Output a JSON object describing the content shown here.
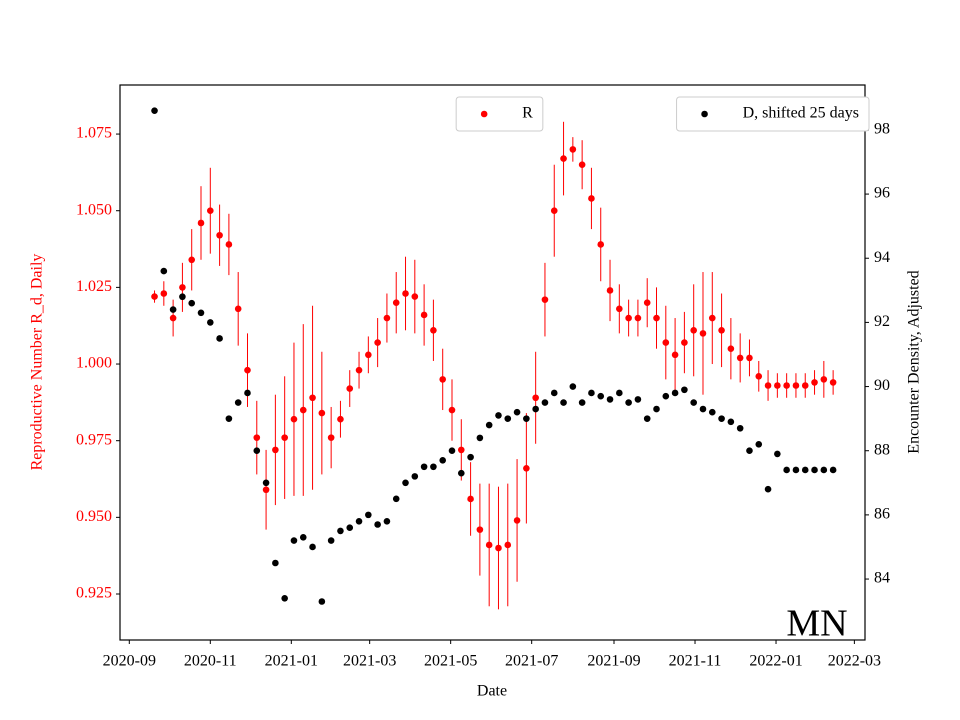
{
  "chart_data": {
    "type": "scatter",
    "xlabel": "Date",
    "ylabel": "Reproductive Number R_d, Daily",
    "y2label": "Encounter Density, Adjusted",
    "annotation": "MN",
    "x": [
      "2020-09-20",
      "2020-09-27",
      "2020-10-04",
      "2020-10-11",
      "2020-10-18",
      "2020-10-25",
      "2020-11-01",
      "2020-11-08",
      "2020-11-15",
      "2020-11-22",
      "2020-11-29",
      "2020-12-06",
      "2020-12-13",
      "2020-12-20",
      "2020-12-27",
      "2021-01-03",
      "2021-01-10",
      "2021-01-17",
      "2021-01-24",
      "2021-01-31",
      "2021-02-07",
      "2021-02-14",
      "2021-02-21",
      "2021-02-28",
      "2021-03-07",
      "2021-03-14",
      "2021-03-21",
      "2021-03-28",
      "2021-04-04",
      "2021-04-11",
      "2021-04-18",
      "2021-04-25",
      "2021-05-02",
      "2021-05-09",
      "2021-05-16",
      "2021-05-23",
      "2021-05-30",
      "2021-06-06",
      "2021-06-13",
      "2021-06-20",
      "2021-06-27",
      "2021-07-04",
      "2021-07-11",
      "2021-07-18",
      "2021-07-25",
      "2021-08-01",
      "2021-08-08",
      "2021-08-15",
      "2021-08-22",
      "2021-08-29",
      "2021-09-05",
      "2021-09-12",
      "2021-09-19",
      "2021-09-26",
      "2021-10-03",
      "2021-10-10",
      "2021-10-17",
      "2021-10-24",
      "2021-10-31",
      "2021-11-07",
      "2021-11-14",
      "2021-11-21",
      "2021-11-28",
      "2021-12-05",
      "2021-12-12",
      "2021-12-19",
      "2021-12-26",
      "2022-01-02",
      "2022-01-09",
      "2022-01-16",
      "2022-01-23",
      "2022-01-30",
      "2022-02-06",
      "2022-02-13"
    ],
    "xlim": [
      "2020-08-25",
      "2022-03-09"
    ],
    "xticks": [
      "2020-09",
      "2020-11",
      "2021-01",
      "2021-03",
      "2021-05",
      "2021-07",
      "2021-09",
      "2021-11",
      "2022-01",
      "2022-03"
    ],
    "ylim": [
      0.91,
      1.091
    ],
    "yticks": [
      0.925,
      {
        "value": 0.95,
        "label": "0.950"
      },
      0.975,
      {
        "value": 1,
        "label": "1.000"
      },
      1.025,
      {
        "value": 1.05,
        "label": "1.050"
      },
      1.075
    ],
    "y2lim": [
      82.1,
      99.4
    ],
    "y2ticks": [
      84,
      86,
      88,
      90,
      92,
      94,
      96,
      98
    ],
    "series": [
      {
        "name": "R",
        "color": "#ff0000",
        "legend": "upper center",
        "values": [
          1.022,
          1.023,
          1.015,
          1.025,
          1.034,
          1.046,
          1.05,
          1.042,
          1.039,
          1.018,
          0.998,
          0.976,
          0.959,
          0.972,
          0.976,
          0.982,
          0.985,
          0.989,
          0.984,
          0.976,
          0.982,
          0.992,
          0.998,
          1.003,
          1.007,
          1.015,
          1.02,
          1.023,
          1.022,
          1.016,
          1.011,
          0.995,
          0.985,
          0.972,
          0.956,
          0.946,
          0.941,
          0.94,
          0.941,
          0.949,
          0.966,
          0.989,
          1.021,
          1.05,
          1.067,
          1.07,
          1.065,
          1.054,
          1.039,
          1.024,
          1.018,
          1.015,
          1.015,
          1.02,
          1.015,
          1.007,
          1.003,
          1.007,
          1.011,
          1.01,
          1.015,
          1.011,
          1.005,
          1.002,
          1.002,
          0.996,
          0.993,
          0.993,
          0.993,
          0.993,
          0.993,
          0.994,
          0.995,
          0.994
        ],
        "errors": [
          0.002,
          0.004,
          0.006,
          0.008,
          0.01,
          0.012,
          0.014,
          0.01,
          0.01,
          0.012,
          0.012,
          0.012,
          0.013,
          0.018,
          0.02,
          0.025,
          0.028,
          0.03,
          0.02,
          0.01,
          0.006,
          0.006,
          0.006,
          0.006,
          0.008,
          0.008,
          0.01,
          0.012,
          0.012,
          0.01,
          0.01,
          0.01,
          0.01,
          0.01,
          0.012,
          0.015,
          0.02,
          0.02,
          0.02,
          0.02,
          0.018,
          0.015,
          0.012,
          0.015,
          0.012,
          0.004,
          0.008,
          0.01,
          0.012,
          0.01,
          0.008,
          0.006,
          0.006,
          0.008,
          0.01,
          0.012,
          0.012,
          0.01,
          0.015,
          0.02,
          0.015,
          0.012,
          0.01,
          0.008,
          0.006,
          0.005,
          0.005,
          0.004,
          0.004,
          0.004,
          0.004,
          0.004,
          0.006,
          0.004
        ]
      },
      {
        "name": "D, shifted 25 days",
        "color": "#000000",
        "axis": "y2",
        "legend": "upper right",
        "values": [
          98.6,
          93.6,
          92.4,
          92.8,
          92.6,
          92.3,
          92.0,
          91.5,
          89.0,
          89.5,
          89.8,
          88.0,
          87.0,
          84.5,
          83.4,
          85.2,
          85.3,
          85.0,
          83.3,
          85.2,
          85.5,
          85.6,
          85.8,
          86.0,
          85.7,
          85.8,
          86.5,
          87.0,
          87.2,
          87.5,
          87.5,
          87.7,
          88.0,
          87.3,
          87.8,
          88.4,
          88.8,
          89.1,
          89.0,
          89.2,
          89.0,
          89.3,
          89.5,
          89.8,
          89.5,
          90.0,
          89.5,
          89.8,
          89.7,
          89.6,
          89.8,
          89.5,
          89.6,
          89.0,
          89.3,
          89.7,
          89.8,
          89.9,
          89.5,
          89.3,
          89.2,
          89.0,
          88.9,
          88.7,
          88.0,
          88.2,
          86.8,
          87.9,
          87.4,
          87.4,
          87.4,
          87.4,
          87.4,
          87.4
        ]
      }
    ]
  }
}
